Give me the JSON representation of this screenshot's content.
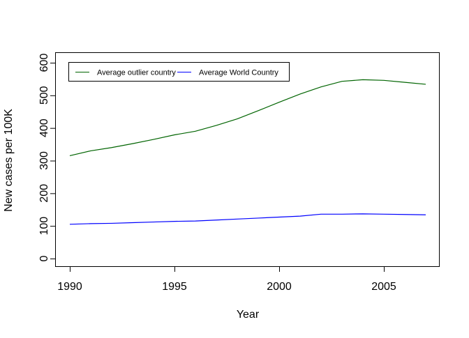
{
  "chart_data": {
    "type": "line",
    "title": "",
    "xlabel": "Year",
    "ylabel": "New cases per 100K",
    "xlim": [
      1989.3,
      2007.6
    ],
    "ylim": [
      -25,
      625
    ],
    "x_ticks": [
      1990,
      1995,
      2000,
      2005
    ],
    "y_ticks": [
      0,
      100,
      200,
      300,
      400,
      500,
      600
    ],
    "grid": false,
    "legend_position": "top-left",
    "x": [
      1990,
      1991,
      1992,
      1993,
      1994,
      1995,
      1996,
      1997,
      1998,
      1999,
      2000,
      2001,
      2002,
      2003,
      2004,
      2005,
      2006,
      2007
    ],
    "series": [
      {
        "name": "Average outlier country",
        "color": "#006400",
        "values": [
          315,
          330,
          340,
          352,
          365,
          379,
          390,
          408,
          428,
          453,
          479,
          504,
          526,
          543,
          548,
          546,
          540,
          534
        ]
      },
      {
        "name": "Average World Country",
        "color": "#0000ff",
        "values": [
          105,
          107,
          108,
          110,
          112,
          114,
          115,
          118,
          121,
          124,
          127,
          130,
          136,
          136,
          137,
          136,
          135,
          134
        ]
      }
    ]
  }
}
